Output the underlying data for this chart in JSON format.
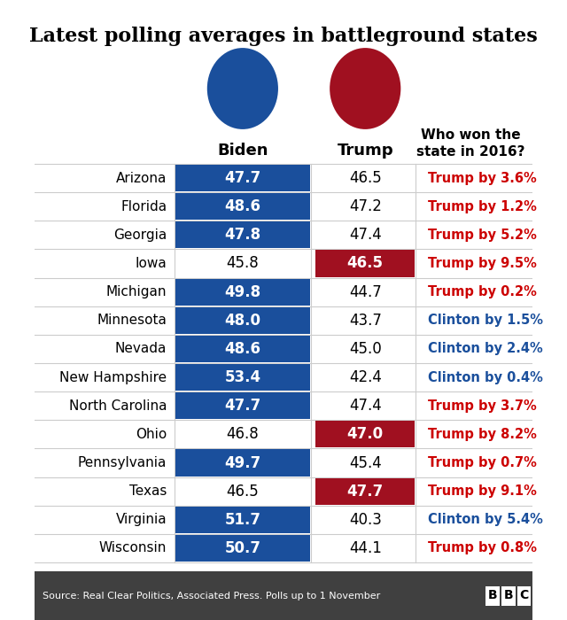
{
  "title": "Latest polling averages in battleground states",
  "col_header_biden": "Biden",
  "col_header_trump": "Trump",
  "col_header_2016": "Who won the\nstate in 2016?",
  "source": "Source: Real Clear Politics, Associated Press. Polls up to 1 November",
  "states": [
    "Arizona",
    "Florida",
    "Georgia",
    "Iowa",
    "Michigan",
    "Minnesota",
    "Nevada",
    "New Hampshire",
    "North Carolina",
    "Ohio",
    "Pennsylvania",
    "Texas",
    "Virginia",
    "Wisconsin"
  ],
  "biden_vals": [
    47.7,
    48.6,
    47.8,
    45.8,
    49.8,
    48.0,
    48.6,
    53.4,
    47.7,
    46.8,
    49.7,
    46.5,
    51.7,
    50.7
  ],
  "trump_vals": [
    46.5,
    47.2,
    47.4,
    46.5,
    44.7,
    43.7,
    45.0,
    42.4,
    47.4,
    47.0,
    45.4,
    47.7,
    40.3,
    44.1
  ],
  "winner_2016": [
    "Trump by 3.6%",
    "Trump by 1.2%",
    "Trump by 5.2%",
    "Trump by 9.5%",
    "Trump by 0.2%",
    "Clinton by 1.5%",
    "Clinton by 2.4%",
    "Clinton by 0.4%",
    "Trump by 3.7%",
    "Trump by 8.2%",
    "Trump by 0.7%",
    "Trump by 9.1%",
    "Clinton by 5.4%",
    "Trump by 0.8%"
  ],
  "biden_highlighted": [
    true,
    true,
    true,
    false,
    true,
    true,
    true,
    true,
    true,
    false,
    true,
    false,
    true,
    true
  ],
  "trump_highlighted": [
    false,
    false,
    false,
    true,
    false,
    false,
    false,
    false,
    false,
    true,
    false,
    true,
    false,
    false
  ],
  "blue_color": "#1a4f9c",
  "red_color": "#a01020",
  "trump_text_color": "#cc0000",
  "clinton_text_color": "#1a4f9c",
  "bg_color": "#ffffff",
  "border_color": "#cccccc",
  "source_bg": "#404040"
}
